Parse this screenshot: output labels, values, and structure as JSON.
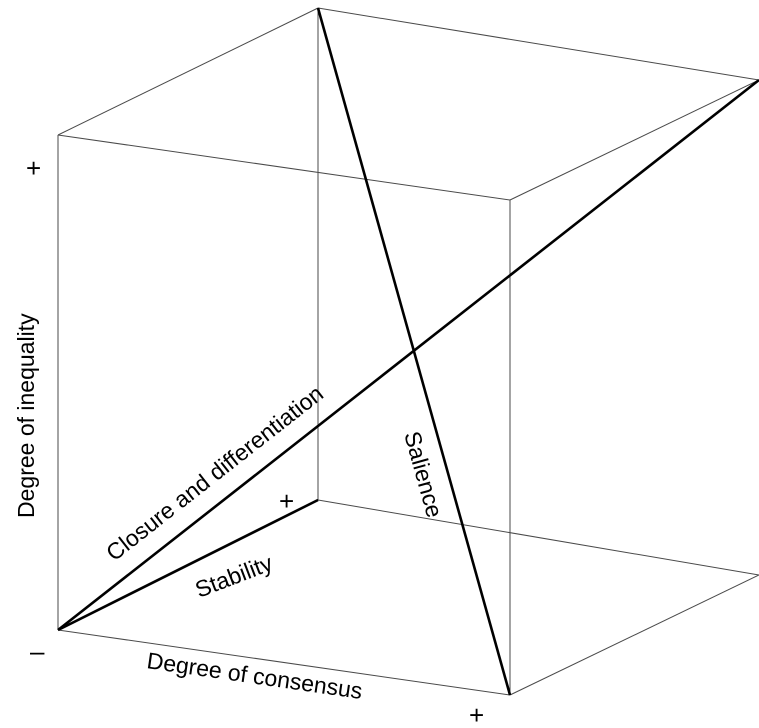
{
  "diagram": {
    "y_axis_label": "Degree of inequality",
    "x_axis_label": "Degree of consensus",
    "lines": {
      "closure": "Closure and differentiation",
      "salience": "Salience",
      "stability": "Stability"
    },
    "signs": {
      "inequality_high": "+",
      "origin": "–",
      "consensus_high": "+",
      "stability_high": "+"
    },
    "colors": {
      "lines": "#000000",
      "edges": "#4a4a4a",
      "background": "#ffffff"
    }
  }
}
